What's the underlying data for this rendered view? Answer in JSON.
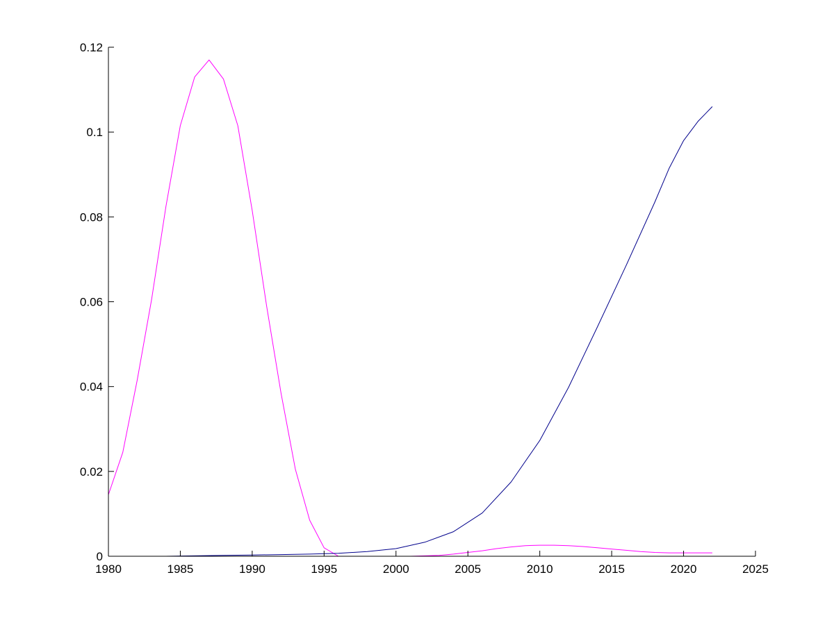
{
  "chart_data": {
    "type": "line",
    "title": "",
    "xlabel": "",
    "ylabel": "",
    "xlim": [
      1980,
      2025
    ],
    "ylim": [
      0,
      0.12
    ],
    "x_ticks": [
      1980,
      1985,
      1990,
      1995,
      2000,
      2005,
      2010,
      2015,
      2020,
      2025
    ],
    "x_tick_labels": [
      "1980",
      "1985",
      "1990",
      "1995",
      "2000",
      "2005",
      "2010",
      "2015",
      "2020",
      "2025"
    ],
    "y_ticks": [
      0,
      0.02,
      0.04,
      0.06,
      0.08,
      0.1,
      0.12
    ],
    "y_tick_labels": [
      "0",
      "0.02",
      "0.04",
      "0.06",
      "0.08",
      "0.1",
      "0.12"
    ],
    "grid": false,
    "legend": "none",
    "series": [
      {
        "color": "#ff00ff",
        "x": [
          1980,
          1981,
          1982,
          1983,
          1984,
          1985,
          1986,
          1987,
          1988,
          1989,
          1990,
          1991,
          1992,
          1993,
          1994,
          1995,
          1996,
          1997,
          1998,
          1999,
          2000,
          2001,
          2002,
          2003,
          2004,
          2005,
          2006,
          2007,
          2008,
          2009,
          2010,
          2011,
          2012,
          2013,
          2014,
          2015,
          2016,
          2017,
          2018,
          2019,
          2020,
          2021,
          2022
        ],
        "y": [
          0.0145,
          0.0245,
          0.0415,
          0.0605,
          0.0825,
          0.1015,
          0.113,
          0.117,
          0.1125,
          0.1015,
          0.0815,
          0.059,
          0.0385,
          0.0205,
          0.0085,
          0.002,
          0,
          0,
          0,
          0,
          0,
          0,
          0.0001,
          0.0002,
          0.0005,
          0.0009,
          0.0013,
          0.0018,
          0.0022,
          0.0025,
          0.0026,
          0.0026,
          0.0025,
          0.0023,
          0.002,
          0.0017,
          0.0014,
          0.0011,
          0.0009,
          0.0008,
          0.0008,
          0.0008,
          0.0008
        ]
      },
      {
        "color": "#00008b",
        "x": [
          1980,
          1982,
          1984,
          1986,
          1988,
          1990,
          1992,
          1994,
          1996,
          1998,
          2000,
          2002,
          2004,
          2006,
          2008,
          2010,
          2012,
          2014,
          2016,
          2018,
          2019,
          2020,
          2021,
          2022
        ],
        "y": [
          0,
          0,
          0,
          0.0001,
          0.0002,
          0.0003,
          0.0004,
          0.0005,
          0.0007,
          0.0011,
          0.0018,
          0.0033,
          0.0058,
          0.0102,
          0.0175,
          0.0273,
          0.0398,
          0.054,
          0.0685,
          0.0835,
          0.0915,
          0.098,
          0.1025,
          0.106
        ]
      }
    ]
  }
}
